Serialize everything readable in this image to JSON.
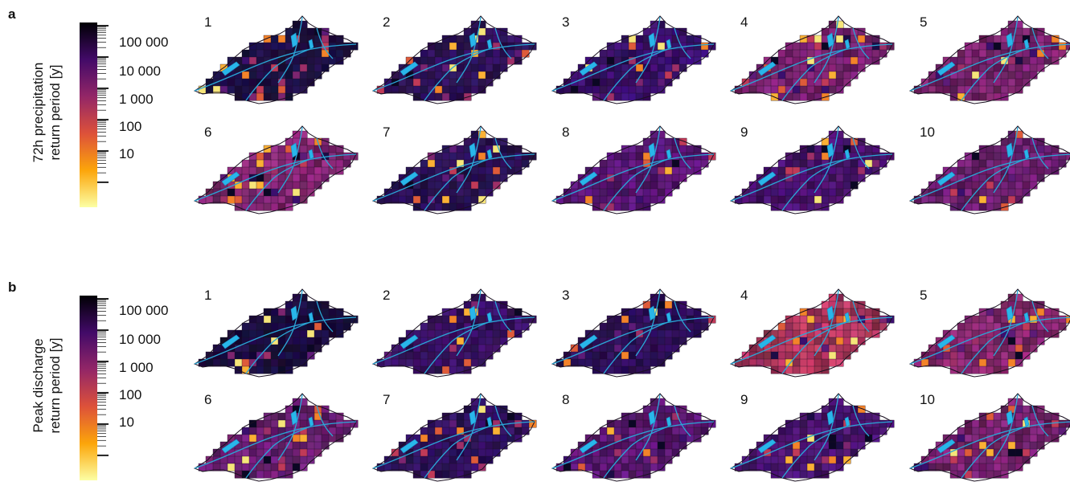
{
  "panels": [
    {
      "letter": "a",
      "ylabel_lines": [
        "72h precipitation",
        "return period [y]"
      ],
      "colorbar": {
        "tick_labels": [
          "100 000",
          "10 000",
          "1 000",
          "100",
          "10"
        ],
        "scale": "log",
        "colors": [
          "#fcffa4",
          "#fca50a",
          "#dd513a",
          "#932667",
          "#420a68",
          "#000004"
        ]
      },
      "maps": [
        {
          "label": "1",
          "dominant_color": "#1c0f45"
        },
        {
          "label": "2",
          "dominant_color": "#2d1159"
        },
        {
          "label": "3",
          "dominant_color": "#3b0f6e"
        },
        {
          "label": "4",
          "dominant_color": "#7a2270"
        },
        {
          "label": "5",
          "dominant_color": "#7e2470"
        },
        {
          "label": "6",
          "dominant_color": "#842673"
        },
        {
          "label": "7",
          "dominant_color": "#2a1155"
        },
        {
          "label": "8",
          "dominant_color": "#5a1577"
        },
        {
          "label": "9",
          "dominant_color": "#4a1270"
        },
        {
          "label": "10",
          "dominant_color": "#6f1f72"
        }
      ]
    },
    {
      "letter": "b",
      "ylabel_lines": [
        "Peak discharge",
        "return period [y]"
      ],
      "colorbar": {
        "tick_labels": [
          "100 000",
          "10 000",
          "1 000",
          "100",
          "10"
        ],
        "scale": "log",
        "colors": [
          "#fcffa4",
          "#fca50a",
          "#dd513a",
          "#932667",
          "#420a68",
          "#000004"
        ]
      },
      "maps": [
        {
          "label": "1",
          "dominant_color": "#1a0c40"
        },
        {
          "label": "2",
          "dominant_color": "#3a1166"
        },
        {
          "label": "3",
          "dominant_color": "#2c0f58"
        },
        {
          "label": "4",
          "dominant_color": "#b3385e"
        },
        {
          "label": "5",
          "dominant_color": "#8a2770"
        },
        {
          "label": "6",
          "dominant_color": "#6b1e73"
        },
        {
          "label": "7",
          "dominant_color": "#2f1160"
        },
        {
          "label": "8",
          "dominant_color": "#5e1776"
        },
        {
          "label": "9",
          "dominant_color": "#4b1472"
        },
        {
          "label": "10",
          "dominant_color": "#7a2270"
        }
      ]
    }
  ]
}
